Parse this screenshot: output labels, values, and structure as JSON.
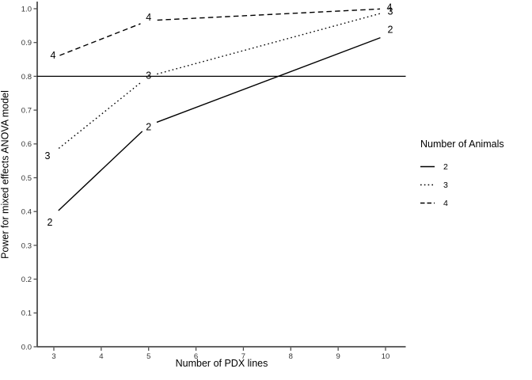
{
  "chart_data": {
    "type": "line",
    "title": "",
    "xlabel": "Number of PDX lines",
    "ylabel": "Power for mixed effects ANOVA model",
    "x": [
      3,
      5,
      10
    ],
    "series": [
      {
        "name": "2",
        "linetype": "solid",
        "values": [
          0.39,
          0.655,
          0.92
        ]
      },
      {
        "name": "3",
        "linetype": "dotted",
        "values": [
          0.575,
          0.8,
          0.99
        ]
      },
      {
        "name": "4",
        "linetype": "dashed",
        "values": [
          0.855,
          0.965,
          1.0
        ]
      }
    ],
    "point_labels": true,
    "reference_line_y": 0.8,
    "x_ticks": [
      3,
      4,
      5,
      6,
      7,
      8,
      9,
      10
    ],
    "y_ticks": [
      [
        0.0,
        "0.0"
      ],
      [
        0.1,
        "0.1"
      ],
      [
        0.2,
        "0.2"
      ],
      [
        0.3,
        "0.3"
      ],
      [
        0.4,
        "0.4"
      ],
      [
        0.5,
        "0.5"
      ],
      [
        0.6,
        "0.6"
      ],
      [
        0.7,
        "0.7"
      ],
      [
        0.8,
        "0.8"
      ],
      [
        0.9,
        "0.9"
      ],
      [
        1.0,
        "1.0"
      ]
    ],
    "xlim": [
      2.65,
      10.42
    ],
    "ylim": [
      0.0,
      1.02
    ],
    "grid": false,
    "legend": {
      "title": "Number of Animals",
      "position": "right",
      "entries": [
        {
          "label": "2",
          "linetype": "solid"
        },
        {
          "label": "3",
          "linetype": "dotted"
        },
        {
          "label": "4",
          "linetype": "dashed"
        }
      ]
    },
    "colors": {
      "line": "#000000",
      "axis": "#4d4d4d",
      "tick_text": "#333333",
      "background": "#ffffff"
    }
  }
}
